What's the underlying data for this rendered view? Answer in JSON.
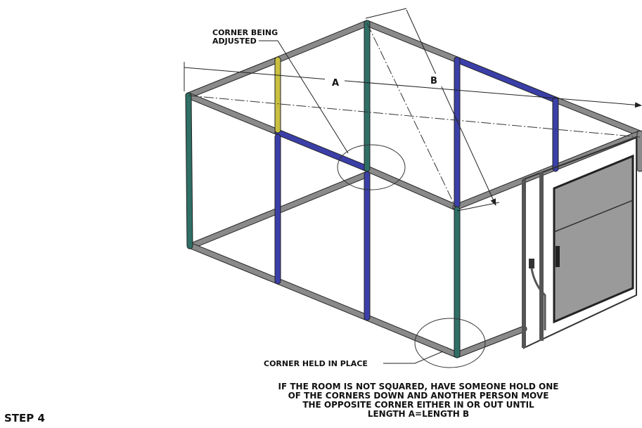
{
  "labels": {
    "corner_adjusted": [
      "CORNER BEING",
      "ADJUSTED"
    ],
    "a": "A",
    "b": "B",
    "corner_held": "CORNER HELD IN PLACE",
    "instruction": [
      "IF THE ROOM IS NOT SQUARED, HAVE SOMEONE HOLD ONE",
      "OF THE CORNERS DOWN AND ANOTHER PERSON MOVE",
      "THE OPPOSITE CORNER EITHER IN OR OUT UNTIL",
      "LENGTH A=LENGTH B"
    ],
    "step": "STEP 4"
  }
}
